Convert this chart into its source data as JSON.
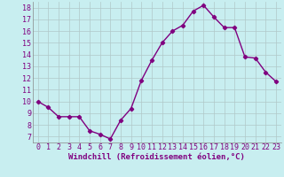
{
  "x": [
    0,
    1,
    2,
    3,
    4,
    5,
    6,
    7,
    8,
    9,
    10,
    11,
    12,
    13,
    14,
    15,
    16,
    17,
    18,
    19,
    20,
    21,
    22,
    23
  ],
  "y": [
    10,
    9.5,
    8.7,
    8.7,
    8.7,
    7.5,
    7.2,
    6.8,
    8.4,
    9.4,
    11.8,
    13.5,
    15.0,
    16.0,
    16.5,
    17.7,
    18.2,
    17.2,
    16.3,
    16.3,
    13.8,
    13.7,
    12.5,
    11.7
  ],
  "line_color": "#800080",
  "marker": "D",
  "marker_size": 2.2,
  "linewidth": 1.0,
  "xlabel": "Windchill (Refroidissement éolien,°C)",
  "xlim": [
    -0.5,
    23.5
  ],
  "ylim": [
    6.5,
    18.5
  ],
  "yticks": [
    7,
    8,
    9,
    10,
    11,
    12,
    13,
    14,
    15,
    16,
    17,
    18
  ],
  "xticks": [
    0,
    1,
    2,
    3,
    4,
    5,
    6,
    7,
    8,
    9,
    10,
    11,
    12,
    13,
    14,
    15,
    16,
    17,
    18,
    19,
    20,
    21,
    22,
    23
  ],
  "background_color": "#c8eef0",
  "grid_color": "#b0c8c8",
  "xlabel_color": "#800080",
  "tick_color": "#800080",
  "font_size_xlabel": 6.5,
  "font_size_ticks": 6.0
}
